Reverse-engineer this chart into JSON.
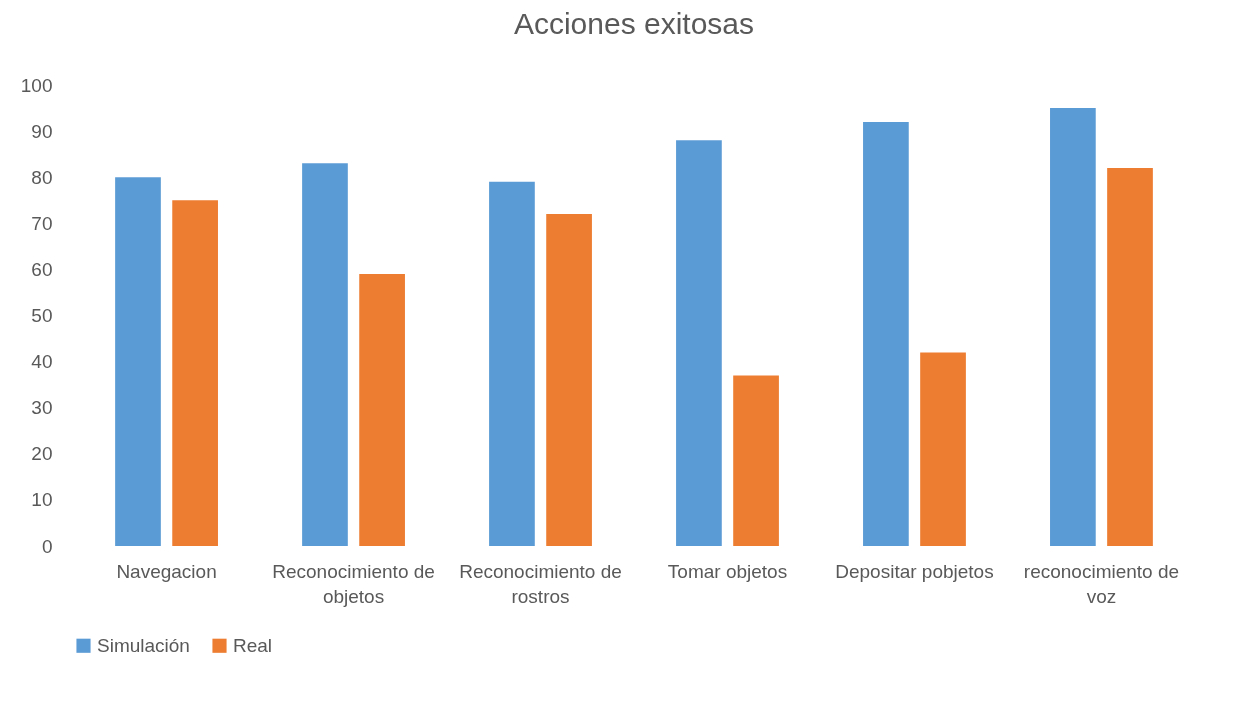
{
  "chart_data": {
    "type": "bar",
    "title": "Acciones exitosas",
    "categories": [
      "Navegacion",
      "Reconocimiento de objetos",
      "Reconocimiento de rostros",
      "Tomar objetos",
      "Depositar pobjetos",
      "reconocimiento de voz"
    ],
    "series": [
      {
        "name": "Simulación",
        "color": "#5b9bd5",
        "values": [
          80,
          83,
          79,
          88,
          92,
          95
        ]
      },
      {
        "name": "Real",
        "color": "#ed7d31",
        "values": [
          75,
          59,
          72,
          37,
          42,
          82
        ]
      }
    ],
    "ylim": [
      0,
      100
    ],
    "yticks": [
      0,
      10,
      20,
      30,
      40,
      50,
      60,
      70,
      80,
      90,
      100
    ],
    "grid": false,
    "legend": "bottom"
  }
}
